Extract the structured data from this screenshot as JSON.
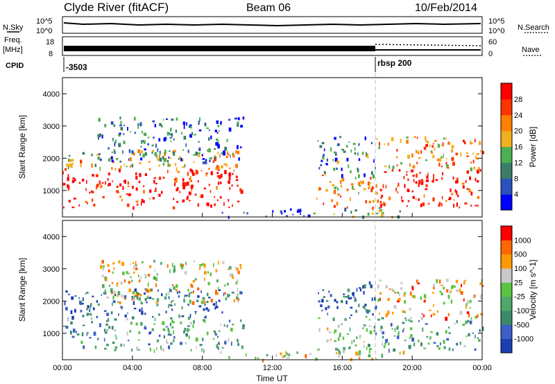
{
  "header": {
    "title": "Clyde River (fitACF)",
    "beam": "Beam 06",
    "date": "10/Feb/2014"
  },
  "top_panels": {
    "nsky_label": "N.Sky",
    "freq_label": "Freq.",
    "freq_unit": "[MHz]",
    "cpid_label": "CPID",
    "nsearch_label": "N.Search",
    "nave_label": "Nave",
    "log_top": "10^5",
    "log_bottom": "10^0",
    "freq_tick_hi": "18",
    "freq_tick_lo": "8",
    "nave_tick_hi": "60",
    "nave_tick_lo": "0",
    "cpid_values": [
      "-3503",
      "rbsp 200"
    ],
    "cpid_change_hour": 18
  },
  "chart_data": [
    {
      "type": "heatmap",
      "title": "",
      "xlabel": "Time UT",
      "ylabel": "Slant Range [km]",
      "x_ticks": [
        "00:00",
        "04:00",
        "08:00",
        "12:00",
        "16:00",
        "20:00",
        "00:00"
      ],
      "xlim_hours": [
        0,
        24
      ],
      "ylim_km": [
        180,
        4500
      ],
      "y_ticks": [
        1000,
        2000,
        3000,
        4000
      ],
      "colorbar": {
        "label": "Power [dB]",
        "range": [
          0,
          32
        ],
        "ticks": [
          4,
          8,
          12,
          16,
          20,
          24,
          28
        ],
        "colors": [
          "#0000ff",
          "#2a52be",
          "#3a7e6a",
          "#4caf50",
          "#f2b01e",
          "#ff7f00",
          "#ff3300",
          "#ff0000"
        ]
      },
      "regions": [
        {
          "t": [
            0.0,
            10.3
          ],
          "r": [
            500,
            1700
          ],
          "level": 0.95
        },
        {
          "t": [
            0.0,
            10.3
          ],
          "r": [
            1700,
            2300
          ],
          "level": 0.55
        },
        {
          "t": [
            2.0,
            10.3
          ],
          "r": [
            1900,
            3300
          ],
          "level": 0.25
        },
        {
          "t": [
            9.0,
            14.5
          ],
          "r": [
            200,
            450
          ],
          "level": 0.15
        },
        {
          "t": [
            14.5,
            18.0
          ],
          "r": [
            500,
            1500
          ],
          "level": 0.65
        },
        {
          "t": [
            14.5,
            18.0
          ],
          "r": [
            1500,
            2700
          ],
          "level": 0.3
        },
        {
          "t": [
            18.0,
            24.0
          ],
          "r": [
            500,
            1700
          ],
          "level": 0.95
        },
        {
          "t": [
            18.0,
            24.0
          ],
          "r": [
            1700,
            2700
          ],
          "level": 0.65
        },
        {
          "t": [
            15.5,
            19.5
          ],
          "r": [
            200,
            500
          ],
          "level": 0.45
        }
      ]
    },
    {
      "type": "heatmap",
      "title": "",
      "xlabel": "Time UT",
      "ylabel": "Slant Range [km]",
      "x_ticks": [
        "00:00",
        "04:00",
        "08:00",
        "12:00",
        "16:00",
        "20:00",
        "00:00"
      ],
      "xlim_hours": [
        0,
        24
      ],
      "ylim_km": [
        180,
        4500
      ],
      "y_ticks": [
        1000,
        2000,
        3000,
        4000
      ],
      "colorbar": {
        "label": "Velocity [m s^-1]",
        "tick_labels": [
          "1000",
          "500",
          "100",
          "25",
          "-25",
          "-100",
          "-500",
          "-1000"
        ],
        "colors": [
          "#1a3fb0",
          "#3d5fc8",
          "#3a8a6a",
          "#4fa76a",
          "#5cc443",
          "#c8c8c8",
          "#ff9900",
          "#ff6600",
          "#ff0000"
        ]
      },
      "regions": [
        {
          "t": [
            0.0,
            10.3
          ],
          "r": [
            500,
            1500
          ],
          "level": 0.35
        },
        {
          "t": [
            0.0,
            10.3
          ],
          "r": [
            1500,
            2400
          ],
          "level": 0.15
        },
        {
          "t": [
            2.0,
            10.3
          ],
          "r": [
            1900,
            3300
          ],
          "level": 0.6
        },
        {
          "t": [
            9.0,
            14.5
          ],
          "r": [
            200,
            450
          ],
          "level": 0.62
        },
        {
          "t": [
            14.5,
            18.0
          ],
          "r": [
            500,
            1500
          ],
          "level": 0.45
        },
        {
          "t": [
            14.5,
            18.0
          ],
          "r": [
            1500,
            2700
          ],
          "level": 0.12
        },
        {
          "t": [
            18.0,
            24.0
          ],
          "r": [
            500,
            1500
          ],
          "level": 0.35
        },
        {
          "t": [
            18.0,
            24.0
          ],
          "r": [
            1500,
            2700
          ],
          "level": 0.7
        },
        {
          "t": [
            15.5,
            19.5
          ],
          "r": [
            200,
            500
          ],
          "level": 0.6
        }
      ]
    }
  ]
}
